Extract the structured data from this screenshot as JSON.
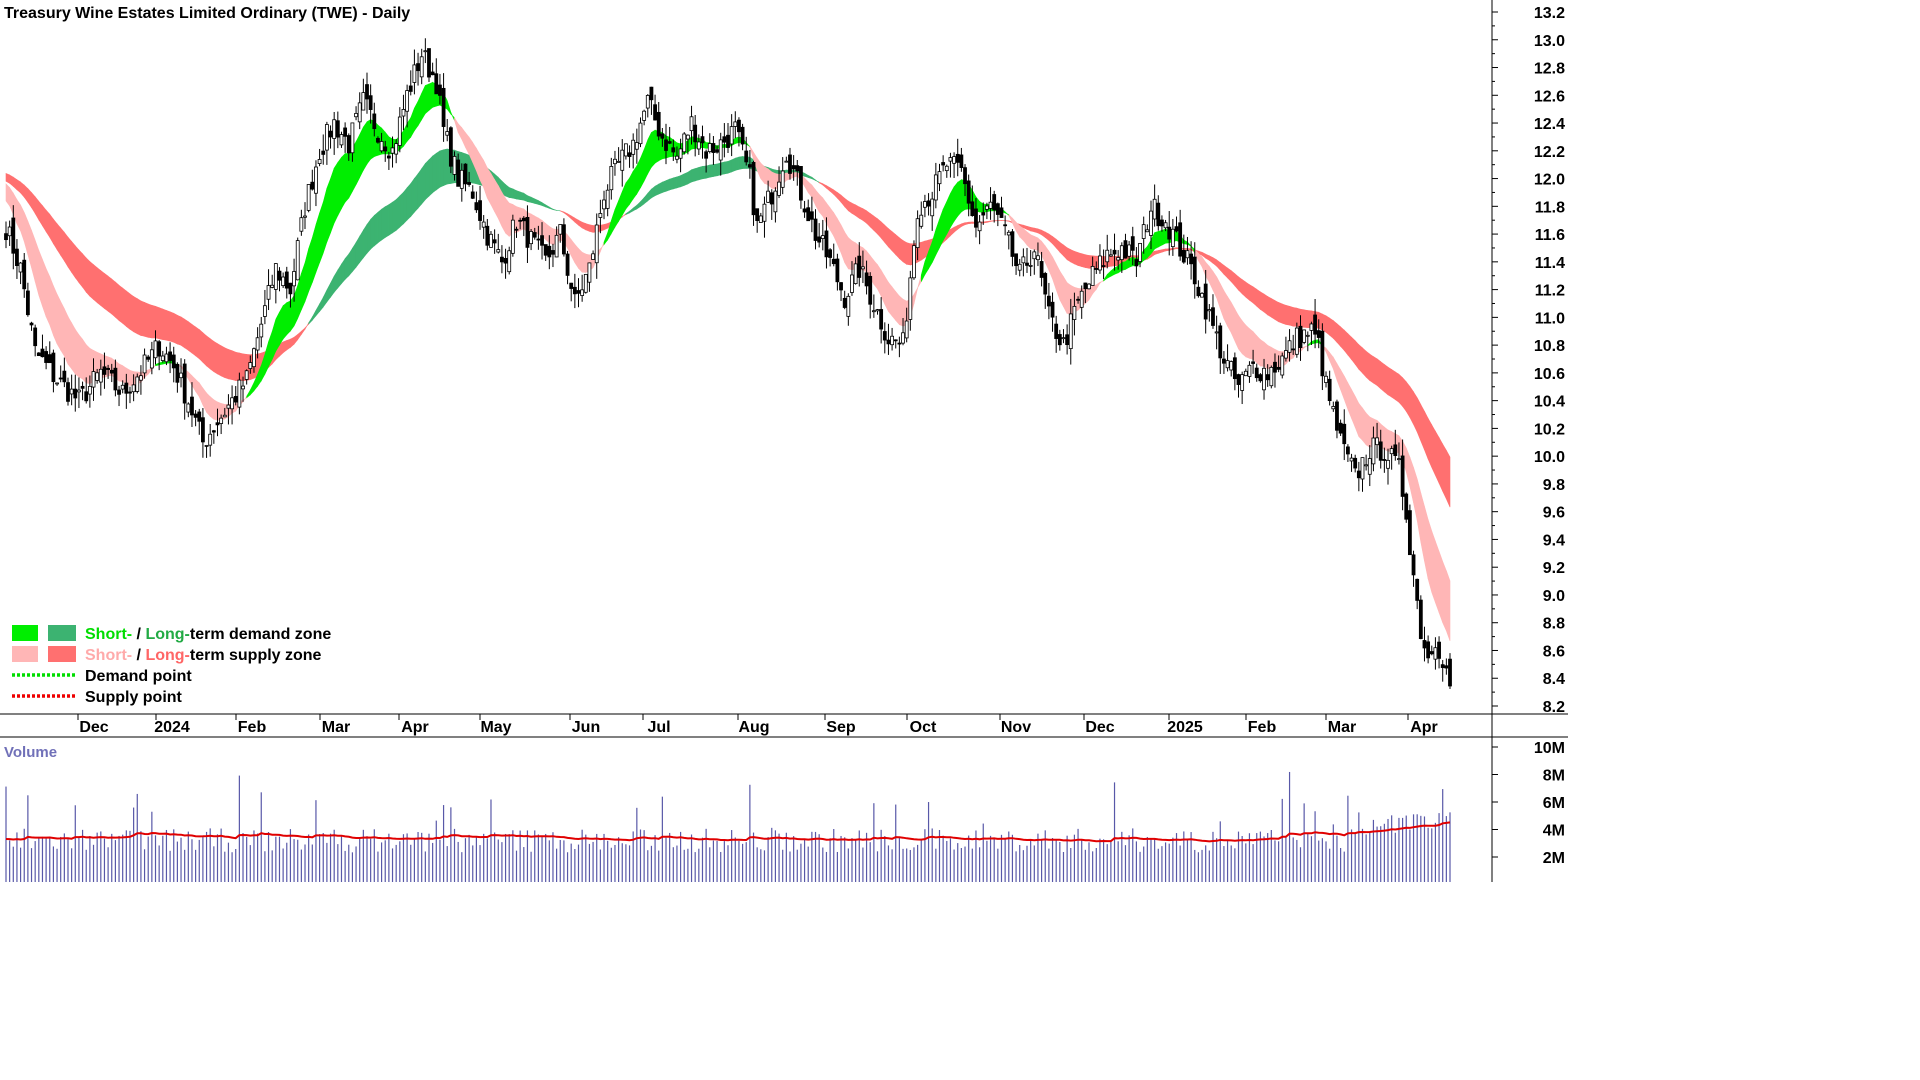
{
  "title": "Treasury Wine Estates Limited Ordinary (TWE) - Daily",
  "chart_data": [
    {
      "type": "candlestick",
      "title": "Treasury Wine Estates Limited Ordinary (TWE) - Daily",
      "ylim": [
        8.1,
        13.25
      ],
      "y_ticks": [
        "13.2",
        "13.0",
        "12.8",
        "12.6",
        "12.4",
        "12.2",
        "12.0",
        "11.8",
        "11.6",
        "11.4",
        "11.2",
        "11.0",
        "10.8",
        "10.6",
        "10.4",
        "10.2",
        "10.0",
        "9.8",
        "9.6",
        "9.4",
        "9.2",
        "9.0",
        "8.8",
        "8.6",
        "8.4",
        "8.2"
      ],
      "x_ticks": [
        "Dec",
        "2024",
        "Feb",
        "Mar",
        "Apr",
        "May",
        "Jun",
        "Jul",
        "Aug",
        "Sep",
        "Oct",
        "Nov",
        "Dec",
        "2025",
        "Feb",
        "Mar",
        "Apr"
      ],
      "close_keypoints": [
        [
          0,
          11.65
        ],
        [
          4,
          11.35
        ],
        [
          8,
          10.75
        ],
        [
          14,
          10.55
        ],
        [
          20,
          10.4
        ],
        [
          26,
          10.6
        ],
        [
          32,
          10.45
        ],
        [
          38,
          10.65
        ],
        [
          42,
          10.8
        ],
        [
          46,
          10.65
        ],
        [
          50,
          10.4
        ],
        [
          54,
          10.1
        ],
        [
          58,
          10.25
        ],
        [
          62,
          10.4
        ],
        [
          66,
          10.55
        ],
        [
          70,
          10.95
        ],
        [
          74,
          11.35
        ],
        [
          78,
          11.2
        ],
        [
          82,
          11.8
        ],
        [
          86,
          12.2
        ],
        [
          90,
          12.4
        ],
        [
          94,
          12.25
        ],
        [
          98,
          12.55
        ],
        [
          102,
          12.35
        ],
        [
          106,
          12.2
        ],
        [
          110,
          12.6
        ],
        [
          114,
          12.9
        ],
        [
          118,
          12.7
        ],
        [
          120,
          12.35
        ],
        [
          124,
          12.0
        ],
        [
          128,
          11.9
        ],
        [
          132,
          11.6
        ],
        [
          136,
          11.4
        ],
        [
          140,
          11.7
        ],
        [
          144,
          11.55
        ],
        [
          148,
          11.4
        ],
        [
          152,
          11.6
        ],
        [
          156,
          11.1
        ],
        [
          160,
          11.35
        ],
        [
          164,
          11.9
        ],
        [
          168,
          12.1
        ],
        [
          172,
          12.25
        ],
        [
          176,
          12.55
        ],
        [
          180,
          12.3
        ],
        [
          184,
          12.15
        ],
        [
          188,
          12.4
        ],
        [
          192,
          12.2
        ],
        [
          196,
          12.25
        ],
        [
          200,
          12.35
        ],
        [
          204,
          12.0
        ],
        [
          206,
          11.65
        ],
        [
          210,
          11.9
        ],
        [
          214,
          12.2
        ],
        [
          218,
          11.9
        ],
        [
          222,
          11.6
        ],
        [
          226,
          11.4
        ],
        [
          230,
          11.15
        ],
        [
          234,
          11.35
        ],
        [
          238,
          11.1
        ],
        [
          242,
          10.85
        ],
        [
          246,
          10.8
        ],
        [
          250,
          11.8
        ],
        [
          254,
          11.9
        ],
        [
          258,
          12.1
        ],
        [
          262,
          12.05
        ],
        [
          266,
          11.65
        ],
        [
          270,
          11.8
        ],
        [
          274,
          11.6
        ],
        [
          278,
          11.3
        ],
        [
          282,
          11.5
        ],
        [
          286,
          11.0
        ],
        [
          290,
          10.8
        ],
        [
          294,
          11.1
        ],
        [
          298,
          11.3
        ],
        [
          302,
          11.45
        ],
        [
          306,
          11.5
        ],
        [
          310,
          11.4
        ],
        [
          314,
          11.8
        ],
        [
          318,
          11.7
        ],
        [
          322,
          11.5
        ],
        [
          326,
          11.3
        ],
        [
          330,
          11.0
        ],
        [
          334,
          10.7
        ],
        [
          338,
          10.5
        ],
        [
          342,
          10.65
        ],
        [
          346,
          10.6
        ],
        [
          350,
          10.7
        ],
        [
          354,
          10.85
        ],
        [
          358,
          10.9
        ],
        [
          360,
          10.8
        ],
        [
          362,
          10.5
        ],
        [
          366,
          10.1
        ],
        [
          370,
          9.85
        ],
        [
          374,
          10.05
        ],
        [
          378,
          10.05
        ],
        [
          382,
          9.9
        ],
        [
          384,
          9.6
        ],
        [
          386,
          9.15
        ],
        [
          388,
          8.75
        ],
        [
          390,
          8.55
        ],
        [
          392,
          8.7
        ],
        [
          394,
          8.55
        ],
        [
          396,
          8.35
        ]
      ],
      "bands": [
        {
          "name": "Short-term demand zone",
          "color": "#00ee00"
        },
        {
          "name": "Long-term demand zone",
          "color": "#3cb371"
        },
        {
          "name": "Short-term supply zone",
          "color": "#ffb6b6"
        },
        {
          "name": "Long-term supply zone",
          "color": "#ff7070"
        }
      ],
      "grid": false
    },
    {
      "type": "bar",
      "title": "Volume",
      "y_ticks": [
        "10M",
        "8M",
        "6M",
        "4M",
        "2M"
      ],
      "ylim": [
        0,
        10.2
      ],
      "moving_average_color": "#e00000",
      "bar_color": "#5858a8"
    }
  ],
  "legend": [
    {
      "prefix": "Short-",
      "sep": " / ",
      "mid": "Long-",
      "suffix": "term demand zone",
      "color1": "#00ee00",
      "color2": "#3cb371",
      "text1": "#00dd00",
      "text2": "#22aa44"
    },
    {
      "prefix": "Short-",
      "sep": " / ",
      "mid": "Long-",
      "suffix": "term supply zone",
      "color1": "#ffb6b6",
      "color2": "#ff7070",
      "text1": "#ffaaaa",
      "text2": "#ff6666"
    },
    {
      "label": "Demand point",
      "color": "#00dd00"
    },
    {
      "label": "Supply point",
      "color": "#ee0000"
    }
  ],
  "volume_label": "Volume"
}
